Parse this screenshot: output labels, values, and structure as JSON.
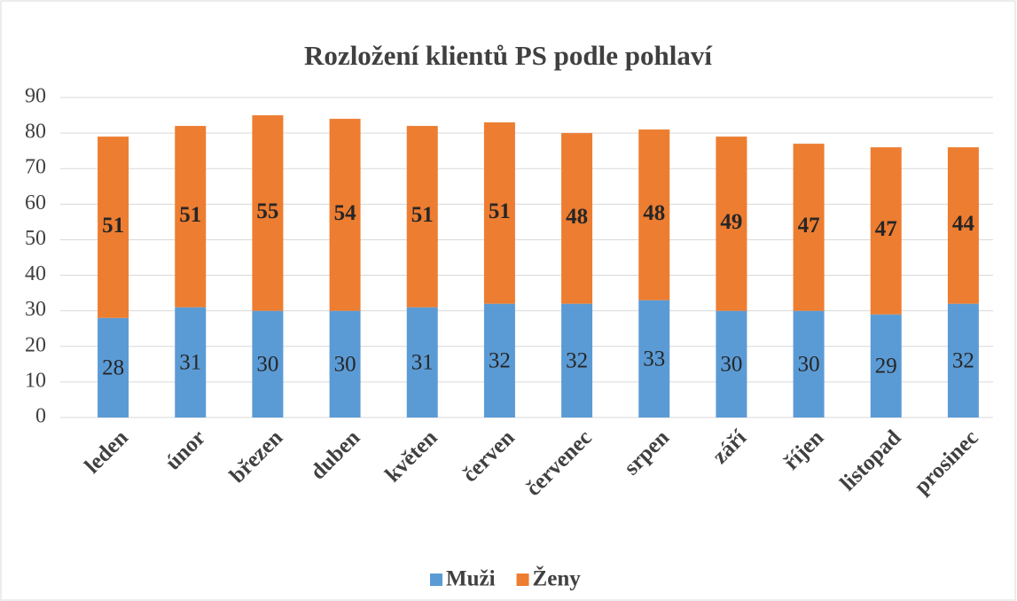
{
  "chart_data": {
    "type": "stacked_bar",
    "title": "Rozložení klientů PS podle pohlaví",
    "categories": [
      "leden",
      "únor",
      "březen",
      "duben",
      "květen",
      "červen",
      "červenec",
      "srpen",
      "září",
      "říjen",
      "listopad",
      "prosinec"
    ],
    "series": [
      {
        "name": "Muži",
        "color": "#5b9bd5",
        "values": [
          28,
          31,
          30,
          30,
          31,
          32,
          32,
          33,
          30,
          30,
          29,
          32
        ]
      },
      {
        "name": "Ženy",
        "color": "#ed7d31",
        "values": [
          51,
          51,
          55,
          54,
          51,
          51,
          48,
          48,
          49,
          47,
          47,
          44
        ]
      }
    ],
    "ylim": [
      0,
      90
    ],
    "yticks": [
      0,
      10,
      20,
      30,
      40,
      50,
      60,
      70,
      80,
      90
    ],
    "grid": true,
    "legend": "bottom"
  }
}
